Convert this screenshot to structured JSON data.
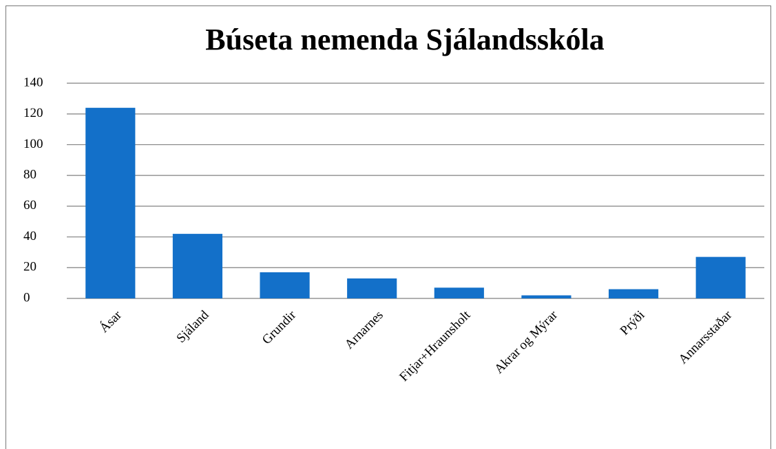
{
  "chart_data": {
    "type": "bar",
    "title": "Búseta nemenda Sjálandsskóla",
    "categories": [
      "Ásar",
      "Sjáland",
      "Grundir",
      "Arnarnes",
      "Fitjar+Hraunsholt",
      "Akrar og Mýrar",
      "Prýði",
      "Annarsstaðar"
    ],
    "values": [
      124,
      42,
      17,
      13,
      7,
      2,
      6,
      27
    ],
    "color": "#1370c9",
    "ylim": [
      0,
      140
    ],
    "yticks": [
      0,
      20,
      40,
      60,
      80,
      100,
      120,
      140
    ],
    "grid": true
  }
}
